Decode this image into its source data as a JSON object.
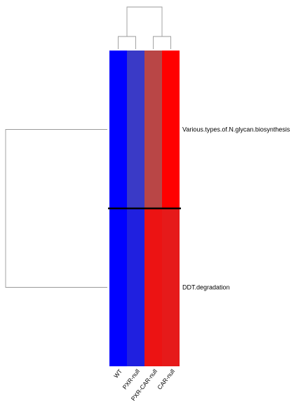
{
  "chart_data": {
    "type": "heatmap",
    "title": "",
    "xlabel": "",
    "ylabel": "",
    "columns": [
      "WT",
      "PXR-null",
      "PXR-CAR-null",
      "CAR-null"
    ],
    "rows": [
      "Various.types.of.N.glycan.biosynthesis",
      "DDT.degradation"
    ],
    "values": [
      [
        -1.0,
        -0.55,
        0.45,
        1.0
      ],
      [
        -1.0,
        -0.75,
        0.85,
        0.8
      ]
    ],
    "color_scale": {
      "low": "#0000ff",
      "mid": "#808080",
      "high": "#ff0000",
      "domain": [
        -1,
        1
      ]
    },
    "column_dendrogram": true,
    "row_dendrogram": true,
    "column_clusters": [
      [
        "WT",
        "PXR-null"
      ],
      [
        "PXR-CAR-null",
        "CAR-null"
      ]
    ]
  }
}
